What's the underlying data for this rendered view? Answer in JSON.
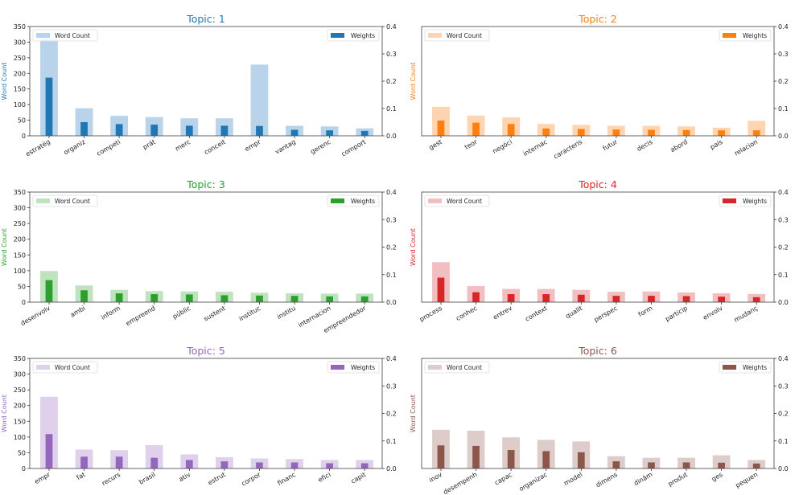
{
  "chart_data": [
    {
      "type": "bar",
      "title": "Topic: 1",
      "color": "#1f77b4",
      "light_color": "#b9d4ea",
      "ylabel": "Word Count",
      "ylim": [
        0,
        350
      ],
      "y2lim": [
        0,
        0.4
      ],
      "yticks": [
        "0",
        "50",
        "100",
        "150",
        "200",
        "250",
        "300",
        "350"
      ],
      "y2ticks": [
        "0.0",
        "0.1",
        "0.2",
        "0.3",
        "0.4"
      ],
      "show_left_ticks": true,
      "legend": [
        "Word Count",
        "Weights"
      ],
      "categories": [
        "estratég",
        "organiz",
        "competi",
        "prát",
        "merc",
        "conceit",
        "empr",
        "vantag",
        "gerenc",
        "comport"
      ],
      "series": [
        {
          "name": "Word Count",
          "axis": "left",
          "values": [
            314,
            88,
            64,
            60,
            56,
            56,
            228,
            32,
            30,
            24
          ]
        },
        {
          "name": "Weights",
          "axis": "right",
          "values": [
            0.213,
            0.05,
            0.043,
            0.041,
            0.037,
            0.037,
            0.036,
            0.022,
            0.02,
            0.018
          ]
        }
      ]
    },
    {
      "type": "bar",
      "title": "Topic: 2",
      "color": "#ff7f0e",
      "light_color": "#fed4b1",
      "ylabel": "Word Count",
      "ylim": [
        0,
        350
      ],
      "y2lim": [
        0,
        0.4
      ],
      "yticks": [],
      "y2ticks": [
        "0.0",
        "0.1",
        "0.2",
        "0.3",
        "0.4"
      ],
      "show_left_ticks": false,
      "legend": [
        "Word Count",
        "Weights"
      ],
      "categories": [
        "gest",
        "teor",
        "negóci",
        "internac",
        "caracteris",
        "futur",
        "decis",
        "abord",
        "país",
        "relacion"
      ],
      "series": [
        {
          "name": "Word Count",
          "axis": "left",
          "values": [
            93,
            65,
            59,
            38,
            35,
            32,
            32,
            30,
            26,
            48
          ]
        },
        {
          "name": "Weights",
          "axis": "right",
          "values": [
            0.056,
            0.048,
            0.043,
            0.027,
            0.025,
            0.023,
            0.022,
            0.021,
            0.02,
            0.02
          ]
        }
      ]
    },
    {
      "type": "bar",
      "title": "Topic: 3",
      "color": "#2ca02c",
      "light_color": "#bfe3bf",
      "ylabel": "Word Count",
      "ylim": [
        0,
        350
      ],
      "y2lim": [
        0,
        0.4
      ],
      "yticks": [
        "0",
        "50",
        "100",
        "150",
        "200",
        "250",
        "300",
        "350"
      ],
      "y2ticks": [
        "0.0",
        "0.1",
        "0.2",
        "0.3",
        "0.4"
      ],
      "show_left_ticks": true,
      "legend": [
        "Word Count",
        "Weights"
      ],
      "categories": [
        "desenvolv",
        "ambi",
        "inform",
        "empreend",
        "públic",
        "sustent",
        "instituc",
        "institu",
        "internacion",
        "empreendedor"
      ],
      "series": [
        {
          "name": "Word Count",
          "axis": "left",
          "values": [
            99,
            53,
            39,
            35,
            34,
            33,
            30,
            28,
            27,
            27
          ]
        },
        {
          "name": "Weights",
          "axis": "right",
          "values": [
            0.08,
            0.043,
            0.032,
            0.029,
            0.028,
            0.025,
            0.024,
            0.023,
            0.021,
            0.021
          ]
        }
      ]
    },
    {
      "type": "bar",
      "title": "Topic: 4",
      "color": "#d62728",
      "light_color": "#f3bebf",
      "ylabel": "Word Count",
      "ylim": [
        0,
        350
      ],
      "y2lim": [
        0,
        0.4
      ],
      "yticks": [],
      "y2ticks": [
        "0.0",
        "0.1",
        "0.2",
        "0.3",
        "0.4"
      ],
      "show_left_ticks": false,
      "legend": [
        "Word Count",
        "Weights"
      ],
      "categories": [
        "process",
        "conhec",
        "entrev",
        "context",
        "qualit",
        "perspec",
        "form",
        "particip",
        "envolv",
        "mudanç"
      ],
      "series": [
        {
          "name": "Word Count",
          "axis": "left",
          "values": [
            127,
            51,
            42,
            42,
            39,
            33,
            34,
            31,
            28,
            26
          ]
        },
        {
          "name": "Weights",
          "axis": "right",
          "values": [
            0.089,
            0.036,
            0.029,
            0.029,
            0.027,
            0.023,
            0.023,
            0.022,
            0.02,
            0.018
          ]
        }
      ]
    },
    {
      "type": "bar",
      "title": "Topic: 5",
      "color": "#9467bd",
      "light_color": "#dfd1ec",
      "ylabel": "Word Count",
      "ylim": [
        0,
        350
      ],
      "y2lim": [
        0,
        0.4
      ],
      "yticks": [
        "0",
        "50",
        "100",
        "150",
        "200",
        "250",
        "300",
        "350"
      ],
      "y2ticks": [
        "0.0",
        "0.1",
        "0.2",
        "0.3",
        "0.4"
      ],
      "show_left_ticks": true,
      "legend": [
        "Word Count",
        "Weights"
      ],
      "categories": [
        "empr",
        "fat",
        "recurs",
        "brasil",
        "ativ",
        "estrut",
        "corpor",
        "financ",
        "efici",
        "capit"
      ],
      "series": [
        {
          "name": "Word Count",
          "axis": "left",
          "values": [
            228,
            60,
            58,
            74,
            45,
            36,
            32,
            30,
            27,
            27
          ]
        },
        {
          "name": "Weights",
          "axis": "right",
          "values": [
            0.125,
            0.043,
            0.043,
            0.039,
            0.031,
            0.026,
            0.022,
            0.022,
            0.019,
            0.019
          ]
        }
      ]
    },
    {
      "type": "bar",
      "title": "Topic: 6",
      "color": "#8c564b",
      "light_color": "#ddccc9",
      "ylabel": "Word Count",
      "ylim": [
        0,
        350
      ],
      "y2lim": [
        0,
        0.4
      ],
      "yticks": [],
      "y2ticks": [
        "0.0",
        "0.1",
        "0.2",
        "0.3",
        "0.4"
      ],
      "show_left_ticks": false,
      "legend": [
        "Word Count",
        "Weights"
      ],
      "categories": [
        "inov",
        "desempenh",
        "capac",
        "organizac",
        "model",
        "dimens",
        "dinâm",
        "produt",
        "ges",
        "pequen"
      ],
      "series": [
        {
          "name": "Word Count",
          "axis": "left",
          "values": [
            123,
            120,
            99,
            91,
            86,
            39,
            34,
            34,
            42,
            27
          ]
        },
        {
          "name": "Weights",
          "axis": "right",
          "values": [
            0.084,
            0.082,
            0.067,
            0.063,
            0.059,
            0.026,
            0.022,
            0.022,
            0.021,
            0.018
          ]
        }
      ]
    }
  ]
}
